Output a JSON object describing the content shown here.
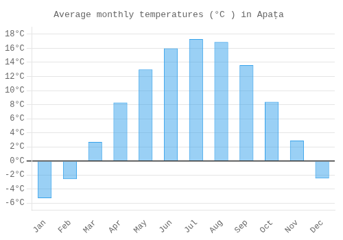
{
  "chart_data": {
    "type": "bar",
    "title": "Average monthly temperatures (°C ) in Apața",
    "categories": [
      "Jan",
      "Feb",
      "Mar",
      "Apr",
      "May",
      "Jun",
      "Jul",
      "Aug",
      "Sep",
      "Oct",
      "Nov",
      "Dec"
    ],
    "values": [
      -5.3,
      -2.6,
      2.7,
      8.3,
      13.0,
      16.0,
      17.3,
      16.9,
      13.6,
      8.4,
      2.9,
      -2.5
    ],
    "ylim": [
      -7,
      19
    ],
    "yticks": [
      {
        "value": -6,
        "label": "-6°C"
      },
      {
        "value": -4,
        "label": "-4°C"
      },
      {
        "value": -2,
        "label": "-2°C"
      },
      {
        "value": 0,
        "label": "0°C"
      },
      {
        "value": 2,
        "label": "2°C"
      },
      {
        "value": 4,
        "label": "4°C"
      },
      {
        "value": 6,
        "label": "6°C"
      },
      {
        "value": 8,
        "label": "8°C"
      },
      {
        "value": 10,
        "label": "10°C"
      },
      {
        "value": 12,
        "label": "12°C"
      },
      {
        "value": 14,
        "label": "14°C"
      },
      {
        "value": 16,
        "label": "16°C"
      },
      {
        "value": 18,
        "label": "18°C"
      }
    ],
    "grid": true
  }
}
